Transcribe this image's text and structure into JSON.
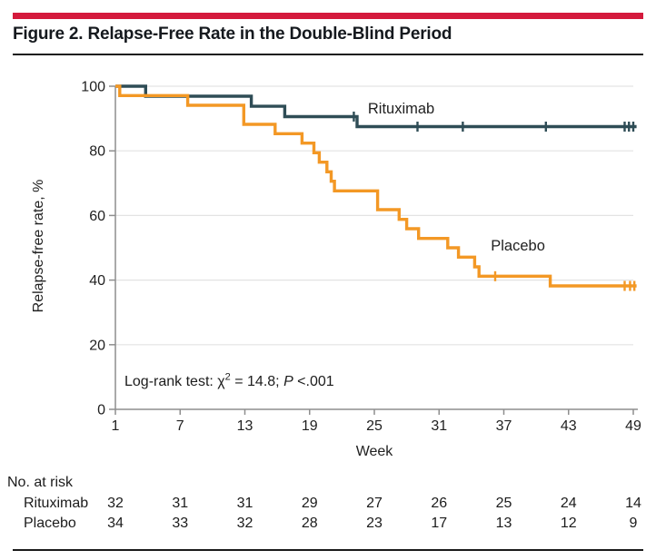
{
  "figure": {
    "title": "Figure 2. Relapse-Free Rate in the Double-Blind Period",
    "accent_color": "#d41a3c",
    "rule_color": "#1a1a1a"
  },
  "chart_data": {
    "type": "line",
    "subtype": "kaplan-meier-step",
    "title": "",
    "xlabel": "Week",
    "ylabel": "Relapse-free rate, %",
    "xlim": [
      1,
      49
    ],
    "ylim": [
      0,
      100
    ],
    "x_ticks": [
      1,
      7,
      13,
      19,
      25,
      31,
      37,
      43,
      49
    ],
    "y_ticks": [
      0,
      20,
      40,
      60,
      80,
      100
    ],
    "grid": "horizontal",
    "legend_position": "inline-labels",
    "annotation": "Log-rank test: χ² = 14.8; P <.001",
    "style": {
      "grid_color": "#e3e3e3",
      "axis_color": "#8e8e8e",
      "text_color": "#212121"
    },
    "series": [
      {
        "name": "Rituximab",
        "color": "#2f4d56",
        "label_color": "#2f4d56",
        "label_pos": {
          "week": 24.4,
          "pct": 91.6
        },
        "points": [
          [
            1,
            100
          ],
          [
            3.8,
            100
          ],
          [
            3.8,
            96.9
          ],
          [
            13.6,
            96.9
          ],
          [
            13.6,
            93.8
          ],
          [
            16.7,
            93.8
          ],
          [
            16.7,
            90.6
          ],
          [
            23.4,
            90.6
          ],
          [
            23.4,
            87.5
          ],
          [
            49.3,
            87.5
          ]
        ],
        "censors": [
          [
            23.1,
            90.6
          ],
          [
            29.0,
            87.5
          ],
          [
            33.2,
            87.5
          ],
          [
            40.9,
            87.5
          ],
          [
            48.2,
            87.5
          ],
          [
            48.6,
            87.5
          ],
          [
            49.0,
            87.5
          ]
        ]
      },
      {
        "name": "Placebo",
        "color": "#f39825",
        "label_color": "#3a3a3a",
        "label_pos": {
          "week": 35.8,
          "pct": 49.2
        },
        "points": [
          [
            1,
            100
          ],
          [
            1.4,
            100
          ],
          [
            1.4,
            97.1
          ],
          [
            7.7,
            97.1
          ],
          [
            7.7,
            94.1
          ],
          [
            12.9,
            94.1
          ],
          [
            12.9,
            88.2
          ],
          [
            15.8,
            88.2
          ],
          [
            15.8,
            85.3
          ],
          [
            18.3,
            85.3
          ],
          [
            18.3,
            82.4
          ],
          [
            19.4,
            82.4
          ],
          [
            19.4,
            79.4
          ],
          [
            19.9,
            79.4
          ],
          [
            19.9,
            76.5
          ],
          [
            20.6,
            76.5
          ],
          [
            20.6,
            73.5
          ],
          [
            21.0,
            73.5
          ],
          [
            21.0,
            70.6
          ],
          [
            21.3,
            70.6
          ],
          [
            21.3,
            67.6
          ],
          [
            25.3,
            67.6
          ],
          [
            25.3,
            61.8
          ],
          [
            27.3,
            61.8
          ],
          [
            27.3,
            58.8
          ],
          [
            28.0,
            58.8
          ],
          [
            28.0,
            55.9
          ],
          [
            29.1,
            55.9
          ],
          [
            29.1,
            52.9
          ],
          [
            31.8,
            52.9
          ],
          [
            31.8,
            50.0
          ],
          [
            32.8,
            50.0
          ],
          [
            32.8,
            47.1
          ],
          [
            34.3,
            47.1
          ],
          [
            34.3,
            44.1
          ],
          [
            34.7,
            44.1
          ],
          [
            34.7,
            41.2
          ],
          [
            41.3,
            41.2
          ],
          [
            41.3,
            38.2
          ],
          [
            49.3,
            38.2
          ]
        ],
        "censors": [
          [
            36.2,
            41.2
          ],
          [
            48.2,
            38.2
          ],
          [
            48.7,
            38.2
          ],
          [
            49.1,
            38.2
          ]
        ]
      }
    ]
  },
  "annotation": {
    "prefix": "Log-rank test: χ",
    "sup": "2",
    "mid": " = 14.8; ",
    "p": "P",
    "suffix": " <.001"
  },
  "at_risk": {
    "header": "No. at risk",
    "weeks": [
      1,
      7,
      13,
      19,
      25,
      31,
      37,
      43,
      49
    ],
    "rows": [
      {
        "label": "Rituximab",
        "values": [
          32,
          31,
          31,
          29,
          27,
          26,
          25,
          24,
          14
        ]
      },
      {
        "label": "Placebo",
        "values": [
          34,
          33,
          32,
          28,
          23,
          17,
          13,
          12,
          9
        ]
      }
    ]
  }
}
